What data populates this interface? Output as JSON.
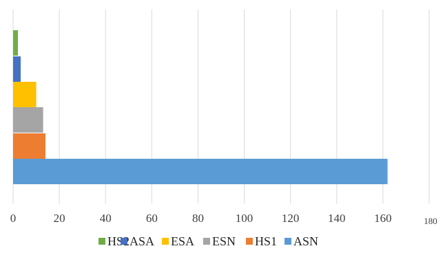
{
  "chart_data": {
    "type": "bar",
    "orientation": "horizontal",
    "title": "",
    "xlabel": "",
    "ylabel": "",
    "xlim": [
      0,
      180
    ],
    "x_ticks": [
      "0",
      "20",
      "40",
      "60",
      "80",
      "100",
      "120",
      "140",
      "160",
      "180"
    ],
    "grid": "vertical",
    "legend_position": "bottom",
    "series": [
      {
        "name": "ASN",
        "value": 162,
        "color": "#5B9BD5"
      },
      {
        "name": "HS1",
        "value": 14,
        "color": "#ED7D31"
      },
      {
        "name": "ESN",
        "value": 13,
        "color": "#A5A5A5"
      },
      {
        "name": "ESA",
        "value": 10,
        "color": "#FFC000"
      },
      {
        "name": "ASA",
        "value": 3,
        "color": "#4472C4"
      },
      {
        "name": "HS2",
        "value": 2,
        "color": "#70AD47"
      }
    ],
    "legend_order": [
      "HS2",
      "ASA",
      "ESA",
      "ESN",
      "HS1",
      "ASN"
    ]
  }
}
